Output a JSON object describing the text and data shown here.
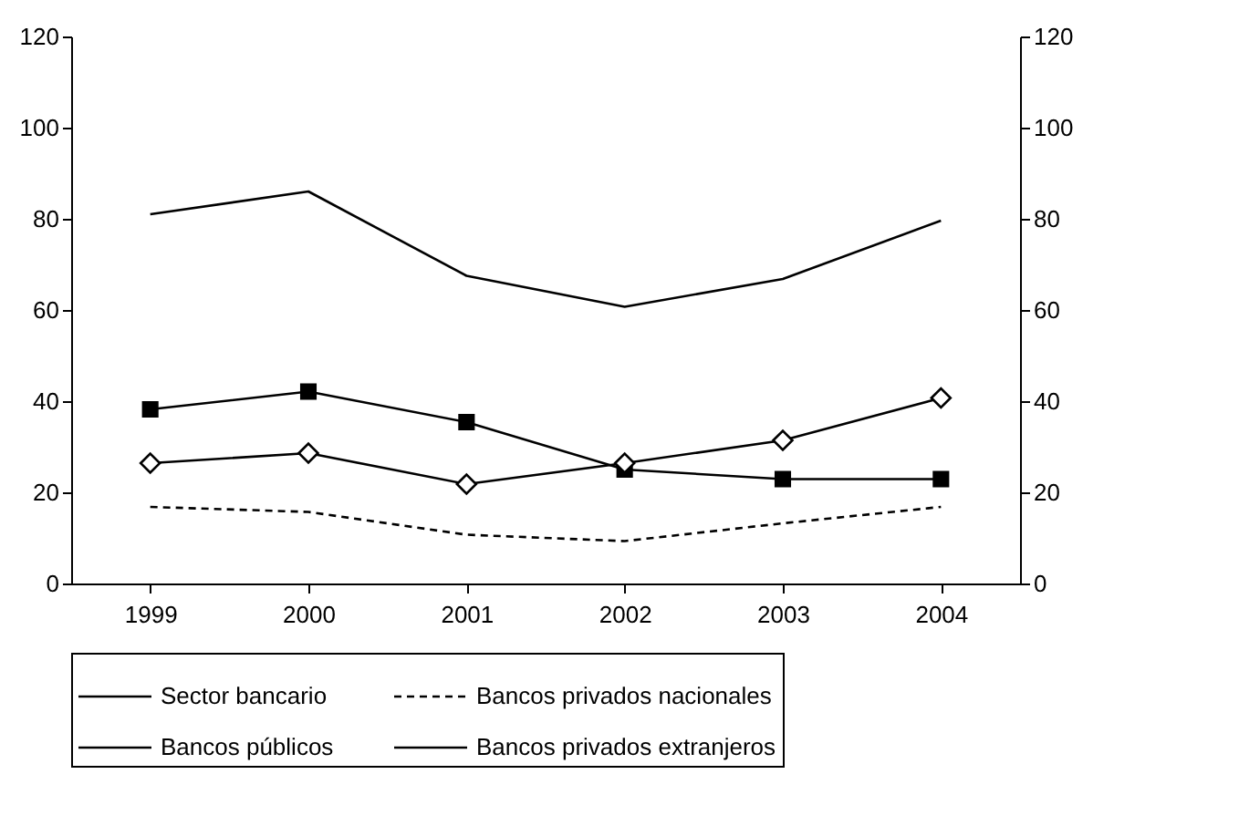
{
  "chart_data": {
    "type": "line",
    "categories": [
      "1999",
      "2000",
      "2001",
      "2002",
      "2003",
      "2004"
    ],
    "series": [
      {
        "name": "Sector bancario",
        "color": "#000000",
        "line_style": "solid",
        "marker": "none",
        "values": [
          81,
          86,
          67.5,
          60.7,
          66.8,
          79.6
        ]
      },
      {
        "name": "Bancos privados nacionales",
        "color": "#000000",
        "line_style": "dashed",
        "marker": "none",
        "values": [
          16.8,
          15.7,
          10.7,
          9.3,
          13.2,
          16.8
        ]
      },
      {
        "name": "Bancos públicos",
        "color": "#000000",
        "line_style": "solid",
        "marker": "diamond",
        "values": [
          26.4,
          28.6,
          21.8,
          26.4,
          31.4,
          40.7
        ]
      },
      {
        "name": "Bancos privados extranjeros",
        "color": "#000000",
        "line_style": "solid",
        "marker": "square",
        "values": [
          38.2,
          42.1,
          35.4,
          25,
          22.9,
          22.9
        ]
      }
    ],
    "ylim": [
      0,
      120
    ],
    "yticks": [
      0,
      20,
      40,
      60,
      80,
      100,
      120
    ],
    "y2lim": [
      0,
      120
    ],
    "y2ticks": [
      0,
      20,
      40,
      60,
      80,
      100,
      120
    ],
    "grid": false,
    "legend": "bottom"
  }
}
